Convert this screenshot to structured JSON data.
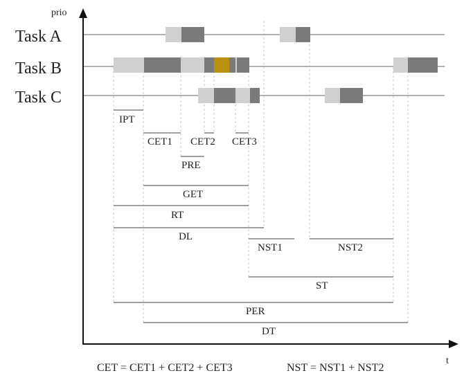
{
  "axes": {
    "y_label": "prio",
    "x_label": "t"
  },
  "tasks": [
    {
      "name": "Task A"
    },
    {
      "name": "Task B"
    },
    {
      "name": "Task C"
    }
  ],
  "intervals": [
    {
      "label": "IPT"
    },
    {
      "label": "CET1"
    },
    {
      "label": "CET2"
    },
    {
      "label": "CET3"
    },
    {
      "label": "PRE"
    },
    {
      "label": "GET"
    },
    {
      "label": "RT"
    },
    {
      "label": "DL"
    },
    {
      "label": "NST1"
    },
    {
      "label": "NST2"
    },
    {
      "label": "ST"
    },
    {
      "label": "PER"
    },
    {
      "label": "DT"
    }
  ],
  "formulas": {
    "cet": "CET = CET1 + CET2 + CET3",
    "nst": "NST = NST1 + NST2"
  },
  "colors": {
    "light_block": "#d0d0d0",
    "dark_block": "#7a7a7a",
    "highlight_block": "#b8900e",
    "task_line": "#b0b0b0",
    "dashed_guide": "#c8c8c8",
    "interval_line": "#a0a0a0",
    "axis": "#111111"
  }
}
